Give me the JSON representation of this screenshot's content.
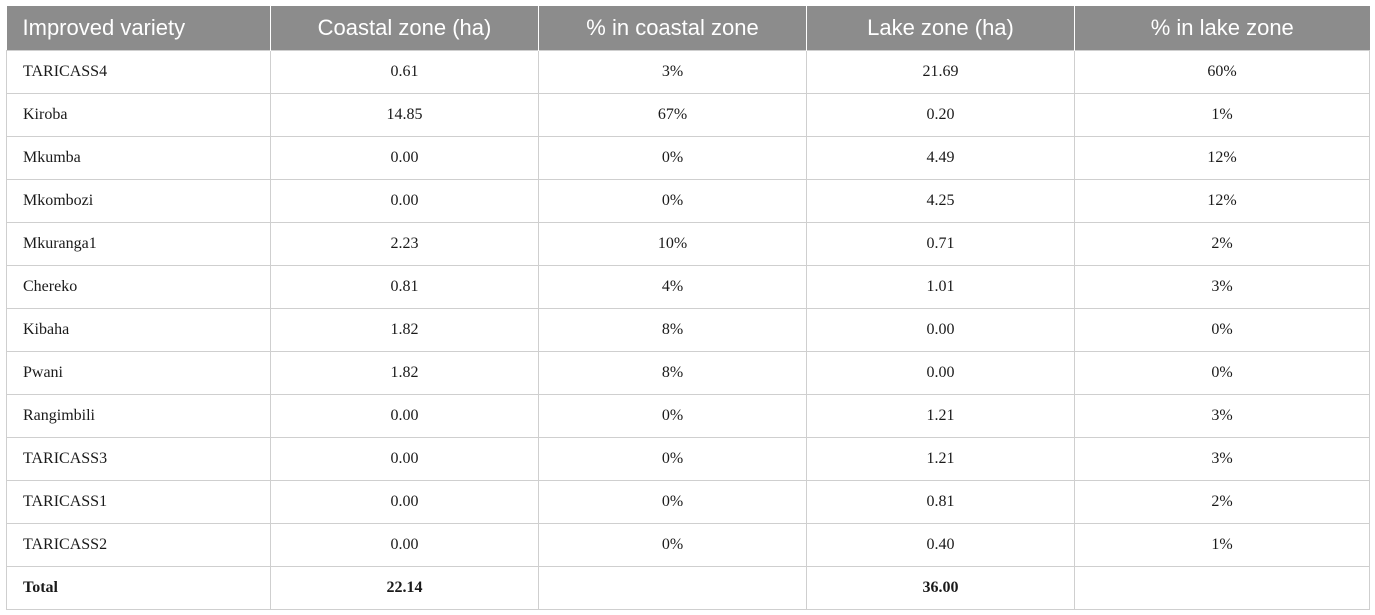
{
  "table": {
    "headers": [
      "Improved variety",
      "Coastal zone (ha)",
      "% in coastal zone",
      "Lake zone (ha)",
      "% in lake zone"
    ],
    "rows": [
      [
        "TARICASS4",
        "0.61",
        "3%",
        "21.69",
        "60%"
      ],
      [
        "Kiroba",
        "14.85",
        "67%",
        "0.20",
        "1%"
      ],
      [
        "Mkumba",
        "0.00",
        "0%",
        "4.49",
        "12%"
      ],
      [
        "Mkombozi",
        "0.00",
        "0%",
        "4.25",
        "12%"
      ],
      [
        "Mkuranga1",
        "2.23",
        "10%",
        "0.71",
        "2%"
      ],
      [
        "Chereko",
        "0.81",
        "4%",
        "1.01",
        "3%"
      ],
      [
        "Kibaha",
        "1.82",
        "8%",
        "0.00",
        "0%"
      ],
      [
        "Pwani",
        "1.82",
        "8%",
        "0.00",
        "0%"
      ],
      [
        "Rangimbili",
        "0.00",
        "0%",
        "1.21",
        "3%"
      ],
      [
        "TARICASS3",
        "0.00",
        "0%",
        "1.21",
        "3%"
      ],
      [
        "TARICASS1",
        "0.00",
        "0%",
        "0.81",
        "2%"
      ],
      [
        "TARICASS2",
        "0.00",
        "0%",
        "0.40",
        "1%"
      ]
    ],
    "total": [
      "Total",
      "22.14",
      "",
      "36.00",
      ""
    ]
  },
  "colors": {
    "header_bg": "#8c8c8c",
    "header_text": "#ffffff",
    "border": "#cfcfcf"
  }
}
